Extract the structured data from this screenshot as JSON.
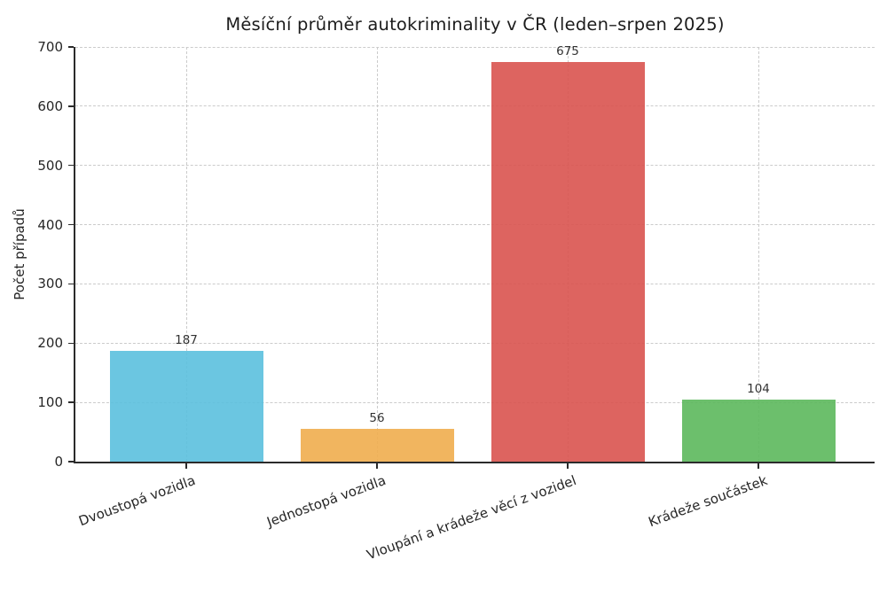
{
  "figure": {
    "background_color": "#ffffff",
    "text_color": "#262626"
  },
  "chart_data": {
    "type": "bar",
    "title": "Měsíční průměr autokriminality v ČR (leden–srpen 2025)",
    "categories": [
      "Dvoustopá vozidla",
      "Jednostopá vozidla",
      "Vloupání a krádeže věcí z vozidel",
      "Krádeže součástek"
    ],
    "values": [
      187,
      56,
      675,
      104
    ],
    "value_labels": [
      "187",
      "56",
      "675",
      "104"
    ],
    "bar_colors": [
      "#5bc0de",
      "#f0ad4e",
      "#d9534f",
      "#5cb85c"
    ],
    "xlabel": "",
    "ylabel": "Počet případů",
    "ylim": [
      0,
      700
    ],
    "yticks": [
      0,
      100,
      200,
      300,
      400,
      500,
      600,
      700
    ],
    "grid": {
      "style": "dashed",
      "color": "#cbcbcb",
      "horizontal": true,
      "vertical": true
    },
    "legend": "none",
    "xtick_rotation_deg": 20
  }
}
